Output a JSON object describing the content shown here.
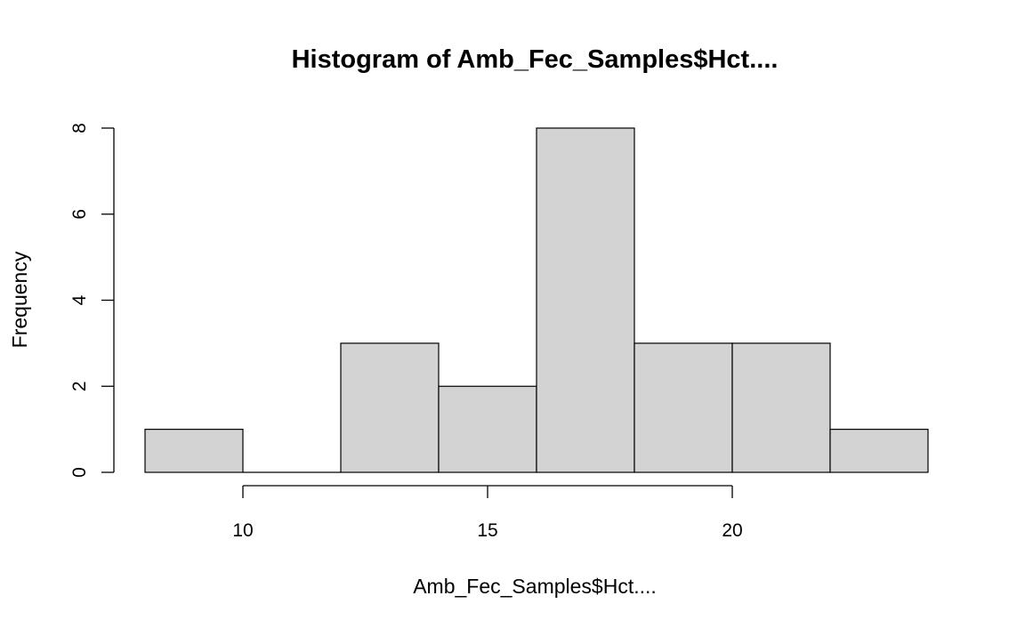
{
  "chart_data": {
    "type": "bar",
    "subtype": "histogram",
    "title": "Histogram of Amb_Fec_Samples$Hct....",
    "xlabel": "Amb_Fec_Samples$Hct....",
    "ylabel": "Frequency",
    "bins": [
      {
        "x0": 8,
        "x1": 10,
        "count": 1
      },
      {
        "x0": 10,
        "x1": 12,
        "count": 0
      },
      {
        "x0": 12,
        "x1": 14,
        "count": 3
      },
      {
        "x0": 14,
        "x1": 16,
        "count": 2
      },
      {
        "x0": 16,
        "x1": 18,
        "count": 8
      },
      {
        "x0": 18,
        "x1": 20,
        "count": 3
      },
      {
        "x0": 20,
        "x1": 22,
        "count": 3
      },
      {
        "x0": 22,
        "x1": 24,
        "count": 1
      }
    ],
    "xticks": [
      10,
      15,
      20
    ],
    "yticks": [
      0,
      2,
      4,
      6,
      8
    ],
    "xlim": [
      8,
      24
    ],
    "ylim": [
      0,
      8
    ],
    "bar_color": "#d3d3d3",
    "grid": false,
    "legend": "none"
  }
}
